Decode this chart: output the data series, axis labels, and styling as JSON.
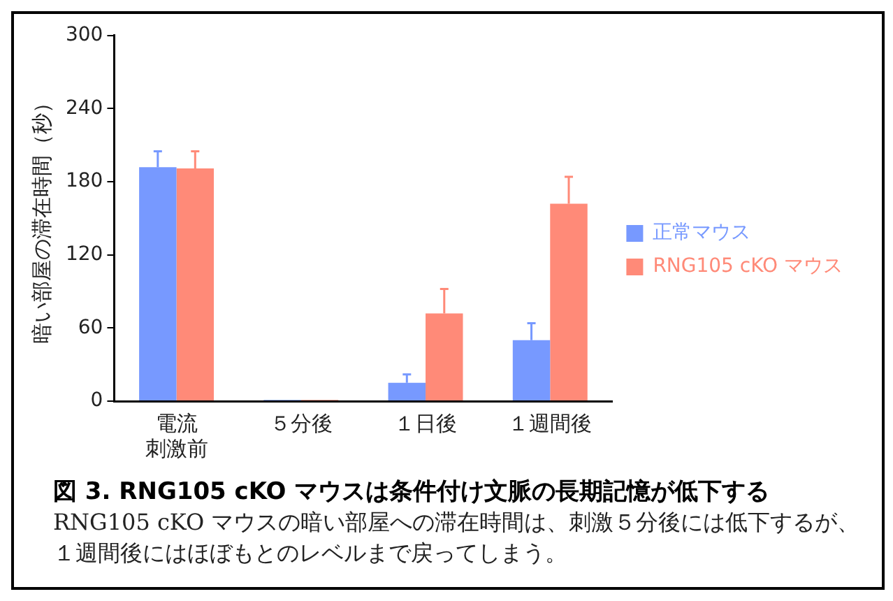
{
  "chart_data": {
    "type": "bar",
    "title": "図 3. RNG105 cKO マウスは条件付け文脈の長期記憶が低下する",
    "ylabel": "暗い部屋の滞在時間（秒）",
    "categories": [
      "電流刺激前",
      "５分後",
      "１日後",
      "１週間後"
    ],
    "series": [
      {
        "name": "正常マウス",
        "color": "#7799ff",
        "values": [
          192,
          1,
          15,
          50
        ],
        "errors": [
          [
            192,
            205
          ],
          null,
          [
            15,
            22
          ],
          [
            50,
            64
          ]
        ]
      },
      {
        "name": "RNG105 cKO マウス",
        "color": "#ff8a78",
        "values": [
          191,
          1,
          72,
          162
        ],
        "errors": [
          [
            191,
            205
          ],
          null,
          [
            72,
            92
          ],
          [
            162,
            184
          ]
        ]
      }
    ],
    "ylim": [
      0,
      300
    ],
    "yticks": [
      0,
      60,
      120,
      180,
      240,
      300
    ],
    "grid": false,
    "legend": "right",
    "annotations": [
      "RNG105 cKO マウスの暗い部屋への滞在時間は、刺激５分後には低下するが、１週間後にはほぼもとのレベルまで戻ってしまう。"
    ]
  }
}
